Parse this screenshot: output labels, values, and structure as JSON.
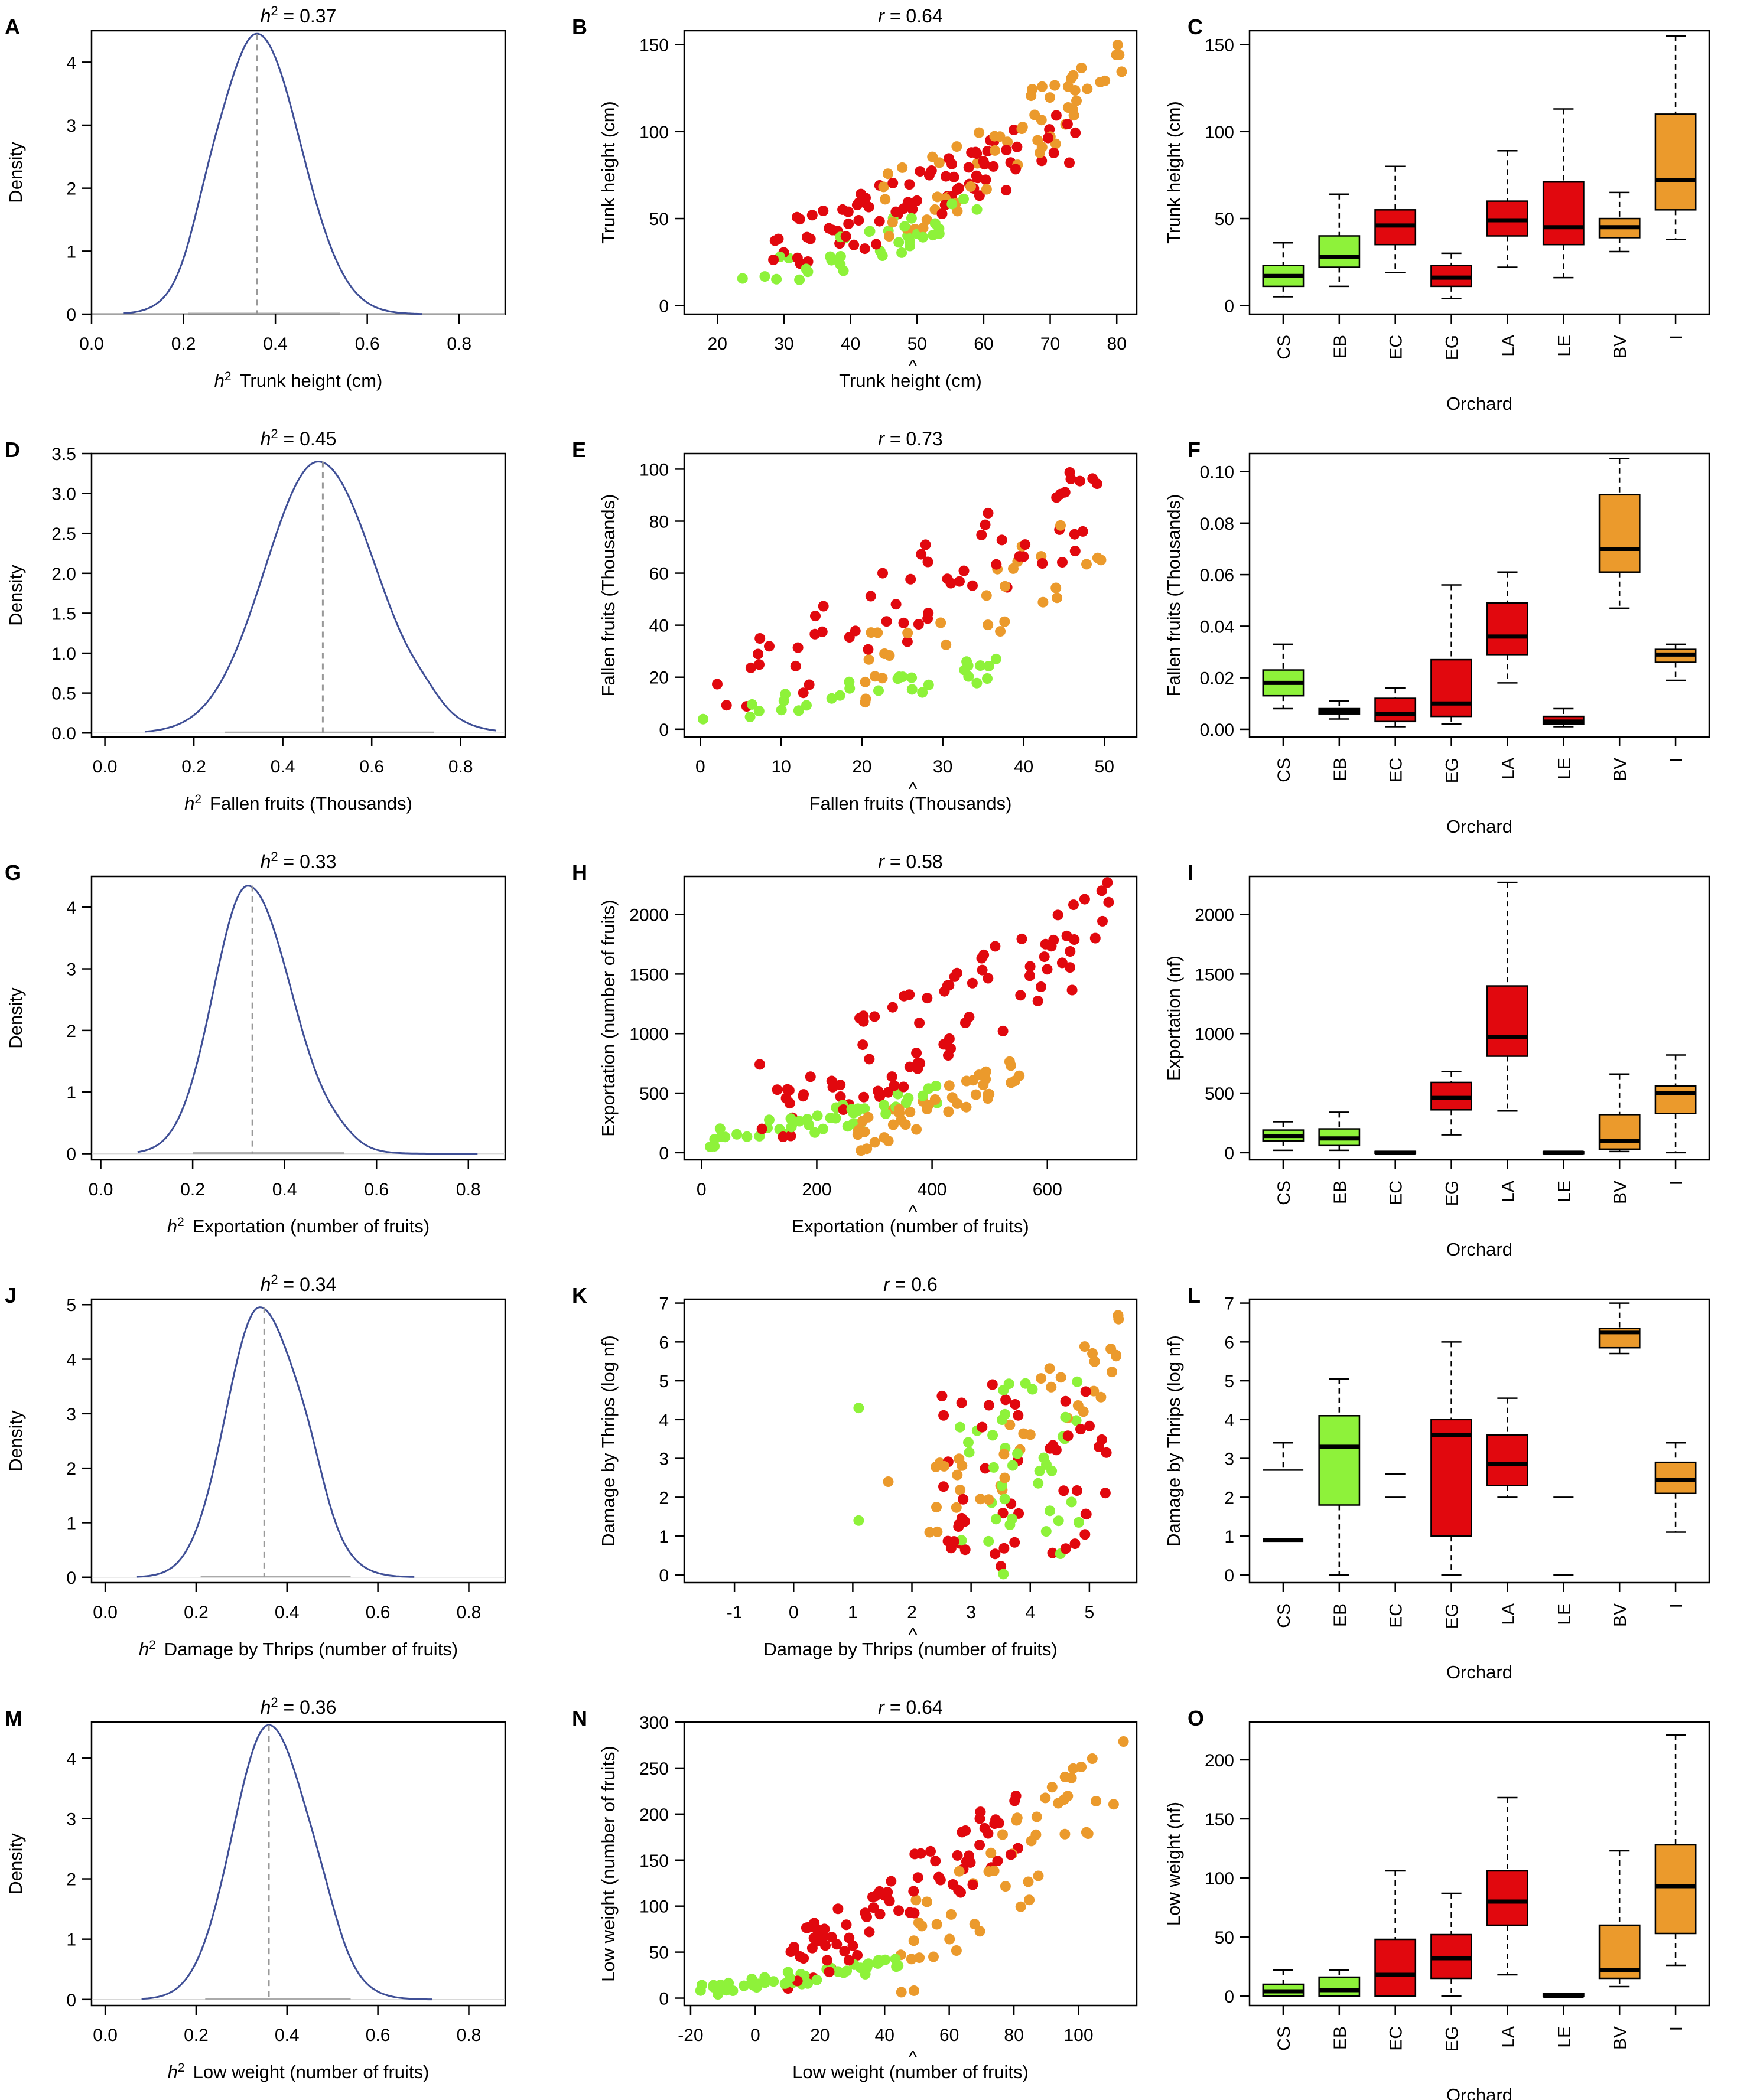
{
  "figure": {
    "background": "#ffffff"
  },
  "colors": {
    "green": "#8ef23a",
    "red": "#e1080e",
    "orange": "#eb9a2c",
    "density_line": "#3f4f96",
    "vline": "#999999",
    "interval": "#aaaaaa"
  },
  "orchards": {
    "labels": [
      "CS",
      "EB",
      "EC",
      "EG",
      "LA",
      "LE",
      "BV",
      "I"
    ],
    "groups": [
      "green",
      "green",
      "red",
      "red",
      "red",
      "red",
      "orange",
      "orange"
    ],
    "axis_title": "Orchard"
  },
  "chart_data": [
    {
      "panel": "A",
      "type": "line",
      "title_prefix": "h",
      "title_sup": "2",
      "title_value": " = 0.37",
      "xlabel_prefix": "h",
      "xlabel_sup": "2",
      "xlabel_rest": "Trunk height (cm)",
      "ylabel": "Density",
      "xlim": [
        0,
        0.9
      ],
      "ylim": [
        0,
        4.5
      ],
      "xticks": [
        0.0,
        0.2,
        0.4,
        0.6,
        0.8
      ],
      "yticks": [
        0,
        1,
        2,
        3,
        4
      ],
      "tick_decimals_x": 1,
      "tick_decimals_y": 0,
      "curve": {
        "mode": 0.36,
        "sigma_left": 0.085,
        "sigma_right": 0.095,
        "peak": 4.45,
        "range": [
          0.07,
          0.72
        ],
        "shoulder_x": 0.25,
        "shoulder_y": 2.9
      },
      "vline": 0.36,
      "interval": [
        0.21,
        0.54
      ]
    },
    {
      "panel": "B",
      "type": "scatter",
      "title_prefix": "r",
      "title_value": " = 0.64",
      "xlabel": "Trunk height (cm)",
      "hat": true,
      "ylabel": "Trunk height (cm)",
      "xlim": [
        15,
        83
      ],
      "ylim": [
        -5,
        158
      ],
      "xticks": [
        20,
        30,
        40,
        50,
        60,
        70,
        80
      ],
      "yticks": [
        0,
        50,
        100,
        150
      ],
      "clusters": [
        {
          "group": "green",
          "x_range": [
            23,
            60
          ],
          "y_range": [
            3,
            65
          ],
          "n": 38,
          "slope": 1.2
        },
        {
          "group": "red",
          "x_range": [
            28,
            74
          ],
          "y_range": [
            15,
            112
          ],
          "n": 85,
          "slope": 1.6
        },
        {
          "group": "orange",
          "x_range": [
            44,
            81
          ],
          "y_range": [
            30,
            155
          ],
          "n": 60,
          "slope": 2.0
        }
      ]
    },
    {
      "panel": "C",
      "type": "box",
      "ylabel": "Trunk height (cm)",
      "ylim": [
        -5,
        158
      ],
      "yticks": [
        0,
        50,
        100,
        150
      ],
      "boxes": [
        {
          "min": 5,
          "q1": 11,
          "med": 17,
          "q3": 23,
          "max": 36
        },
        {
          "min": 11,
          "q1": 22,
          "med": 28,
          "q3": 40,
          "max": 64
        },
        {
          "min": 19,
          "q1": 35,
          "med": 46,
          "q3": 55,
          "max": 80
        },
        {
          "min": 4,
          "q1": 11,
          "med": 16,
          "q3": 23,
          "max": 30
        },
        {
          "min": 22,
          "q1": 40,
          "med": 49,
          "q3": 60,
          "max": 89
        },
        {
          "min": 16,
          "q1": 35,
          "med": 45,
          "q3": 71,
          "max": 113
        },
        {
          "min": 31,
          "q1": 39,
          "med": 45,
          "q3": 50,
          "max": 65
        },
        {
          "min": 38,
          "q1": 55,
          "med": 72,
          "q3": 110,
          "max": 155
        }
      ]
    },
    {
      "panel": "D",
      "type": "line",
      "title_prefix": "h",
      "title_sup": "2",
      "title_value": " = 0.45",
      "xlabel_prefix": "h",
      "xlabel_sup": "2",
      "xlabel_rest": "Fallen fruits (Thousands)",
      "ylabel": "Density",
      "xlim": [
        -0.03,
        0.9
      ],
      "ylim": [
        -0.05,
        3.5
      ],
      "xticks": [
        0.0,
        0.2,
        0.4,
        0.6,
        0.8
      ],
      "yticks": [
        0.0,
        0.5,
        1.0,
        1.5,
        2.0,
        2.5,
        3.0,
        3.5
      ],
      "tick_decimals_x": 1,
      "tick_decimals_y": 1,
      "curve": {
        "mode": 0.48,
        "sigma_left": 0.12,
        "sigma_right": 0.13,
        "peak": 3.4,
        "range": [
          0.09,
          0.88
        ],
        "shoulder_x": 0.72,
        "shoulder_y": 0.75
      },
      "vline": 0.49,
      "interval": [
        0.27,
        0.74
      ]
    },
    {
      "panel": "E",
      "type": "scatter",
      "title_prefix": "r",
      "title_value": " = 0.73",
      "xlabel": "Fallen fruits (Thousands)",
      "hat": true,
      "ylabel": "Fallen fruits (Thousands)",
      "xlim": [
        -2,
        54
      ],
      "ylim": [
        -3,
        106
      ],
      "xticks": [
        0,
        10,
        20,
        30,
        40,
        50
      ],
      "yticks": [
        0,
        20,
        40,
        60,
        80,
        100
      ],
      "clusters": [
        {
          "group": "green",
          "x_range": [
            0,
            37
          ],
          "y_range": [
            1,
            27
          ],
          "n": 30,
          "slope": 0.5
        },
        {
          "group": "red",
          "x_range": [
            2,
            50
          ],
          "y_range": [
            0,
            104
          ],
          "n": 60,
          "slope": 1.1
        },
        {
          "group": "orange",
          "x_range": [
            20,
            53
          ],
          "y_range": [
            8,
            95
          ],
          "n": 30,
          "slope": 2.0
        }
      ]
    },
    {
      "panel": "F",
      "type": "box",
      "ylabel": "Fallen fruits (Thousands)",
      "ylim": [
        -0.003,
        0.107
      ],
      "yticks": [
        0.0,
        0.02,
        0.04,
        0.06,
        0.08,
        0.1
      ],
      "tick_decimals_y": 2,
      "boxes": [
        {
          "min": 0.008,
          "q1": 0.013,
          "med": 0.018,
          "q3": 0.023,
          "max": 0.033
        },
        {
          "min": 0.004,
          "q1": 0.006,
          "med": 0.007,
          "q3": 0.008,
          "max": 0.011
        },
        {
          "min": 0.001,
          "q1": 0.003,
          "med": 0.006,
          "q3": 0.012,
          "max": 0.016
        },
        {
          "min": 0.002,
          "q1": 0.005,
          "med": 0.01,
          "q3": 0.027,
          "max": 0.056
        },
        {
          "min": 0.018,
          "q1": 0.029,
          "med": 0.036,
          "q3": 0.049,
          "max": 0.061
        },
        {
          "min": 0.001,
          "q1": 0.002,
          "med": 0.003,
          "q3": 0.005,
          "max": 0.008
        },
        {
          "min": 0.047,
          "q1": 0.061,
          "med": 0.07,
          "q3": 0.091,
          "max": 0.105
        },
        {
          "min": 0.019,
          "q1": 0.026,
          "med": 0.029,
          "q3": 0.031,
          "max": 0.033
        }
      ]
    },
    {
      "panel": "G",
      "type": "line",
      "title_prefix": "h",
      "title_sup": "2",
      "title_value": " = 0.33",
      "xlabel_prefix": "h",
      "xlabel_sup": "2",
      "xlabel_rest": "Exportation (number of fruits)",
      "ylabel": "Density",
      "xlim": [
        -0.02,
        0.88
      ],
      "ylim": [
        -0.1,
        4.5
      ],
      "xticks": [
        0.0,
        0.2,
        0.4,
        0.6,
        0.8
      ],
      "yticks": [
        0,
        1,
        2,
        3,
        4
      ],
      "tick_decimals_x": 1,
      "tick_decimals_y": 0,
      "curve": {
        "mode": 0.32,
        "sigma_left": 0.075,
        "sigma_right": 0.095,
        "peak": 4.35,
        "range": [
          0.08,
          0.82
        ],
        "shoulder_x": 0.52,
        "shoulder_y": 0.8
      },
      "vline": 0.33,
      "interval": [
        0.2,
        0.53
      ]
    },
    {
      "panel": "H",
      "type": "scatter",
      "title_prefix": "r",
      "title_value": " = 0.58",
      "xlabel": "Exportation (number of fruits)",
      "hat": true,
      "ylabel": "Exportation (number of fruits)",
      "xlim": [
        -30,
        755
      ],
      "ylim": [
        -60,
        2320
      ],
      "xticks": [
        0,
        200,
        400,
        600
      ],
      "yticks": [
        0,
        500,
        1000,
        1500,
        2000
      ],
      "clusters": [
        {
          "group": "green",
          "x_range": [
            0,
            420
          ],
          "y_range": [
            0,
            560
          ],
          "n": 45,
          "slope": 0.6
        },
        {
          "group": "red",
          "x_range": [
            100,
            730
          ],
          "y_range": [
            0,
            2270
          ],
          "n": 85,
          "slope": 2.2
        },
        {
          "group": "orange",
          "x_range": [
            270,
            560
          ],
          "y_range": [
            0,
            840
          ],
          "n": 45,
          "slope": 1.3
        }
      ]
    },
    {
      "panel": "I",
      "type": "box",
      "ylabel": "Exportation (nf)",
      "ylim": [
        -60,
        2320
      ],
      "yticks": [
        0,
        500,
        1000,
        1500,
        2000
      ],
      "boxes": [
        {
          "min": 20,
          "q1": 100,
          "med": 140,
          "q3": 190,
          "max": 260
        },
        {
          "min": 20,
          "q1": 60,
          "med": 120,
          "q3": 200,
          "max": 340
        },
        {
          "min": 0,
          "q1": 0,
          "med": 0,
          "q3": 10,
          "max": 10
        },
        {
          "min": 150,
          "q1": 360,
          "med": 460,
          "q3": 590,
          "max": 680
        },
        {
          "min": 350,
          "q1": 810,
          "med": 970,
          "q3": 1400,
          "max": 2270
        },
        {
          "min": 0,
          "q1": 0,
          "med": 0,
          "q3": 8,
          "max": 8
        },
        {
          "min": 10,
          "q1": 30,
          "med": 100,
          "q3": 320,
          "max": 660
        },
        {
          "min": 0,
          "q1": 330,
          "med": 500,
          "q3": 560,
          "max": 820
        }
      ]
    },
    {
      "panel": "J",
      "type": "line",
      "title_prefix": "h",
      "title_sup": "2",
      "title_value": " = 0.34",
      "xlabel_prefix": "h",
      "xlabel_sup": "2",
      "xlabel_rest": "Damage by Thrips (number of fruits)",
      "ylabel": "Density",
      "xlim": [
        -0.03,
        0.88
      ],
      "ylim": [
        -0.1,
        5.1
      ],
      "xticks": [
        0.0,
        0.2,
        0.4,
        0.6,
        0.8
      ],
      "yticks": [
        0,
        1,
        2,
        3,
        4,
        5
      ],
      "tick_decimals_x": 1,
      "tick_decimals_y": 0,
      "curve": {
        "mode": 0.34,
        "sigma_left": 0.075,
        "sigma_right": 0.09,
        "peak": 4.95,
        "range": [
          0.07,
          0.68
        ],
        "shoulder_x": 0.45,
        "shoulder_y": 3.5
      },
      "vline": 0.35,
      "interval": [
        0.21,
        0.54
      ]
    },
    {
      "panel": "K",
      "type": "scatter",
      "title_prefix": "r",
      "title_value": " = 0.6",
      "xlabel": "Damage by Thrips (number of fruits)",
      "hat": true,
      "ylabel": "Damage by Thrips (log nf)",
      "xlim": [
        -1.85,
        5.8
      ],
      "ylim": [
        -0.2,
        7.1
      ],
      "xticks": [
        -1,
        0,
        1,
        2,
        3,
        4,
        5
      ],
      "yticks": [
        0,
        1,
        2,
        3,
        4,
        5,
        6,
        7
      ],
      "clusters": [
        {
          "group": "green",
          "x_range": [
            2.8,
            5.0
          ],
          "y_range": [
            0,
            5
          ],
          "n": 40,
          "slope": 0
        },
        {
          "group": "red",
          "x_range": [
            2.5,
            5.3
          ],
          "y_range": [
            0,
            5
          ],
          "n": 50,
          "slope": 0
        },
        {
          "group": "orange",
          "x_range": [
            2.4,
            5.6
          ],
          "y_range": [
            0.8,
            7
          ],
          "n": 38,
          "slope": 0.5
        }
      ],
      "extra_points": [
        {
          "group": "green",
          "x": 1.1,
          "y": 4.3
        },
        {
          "group": "green",
          "x": 1.1,
          "y": 1.4
        },
        {
          "group": "orange",
          "x": 1.6,
          "y": 2.4
        },
        {
          "group": "orange",
          "x": 2.3,
          "y": 1.1
        }
      ]
    },
    {
      "panel": "L",
      "type": "box",
      "ylabel": "Damage by Thrips (log nf)",
      "ylim": [
        -0.2,
        7.1
      ],
      "yticks": [
        0,
        1,
        2,
        3,
        4,
        5,
        6,
        7
      ],
      "boxes": [
        {
          "min": 0.9,
          "q1": 0.9,
          "med": 0.9,
          "q3": 0.9,
          "max": 2.7,
          "upper": 3.4,
          "degenerate": true
        },
        {
          "min": 0.0,
          "q1": 1.8,
          "med": 3.3,
          "q3": 4.1,
          "max": 5.05
        },
        {
          "min": 2.0,
          "q1": 2.0,
          "med": 2.0,
          "q3": 2.6,
          "max": 2.6,
          "lines_only": true
        },
        {
          "min": 0.0,
          "q1": 1.0,
          "med": 3.6,
          "q3": 4.0,
          "max": 6.0
        },
        {
          "min": 2.0,
          "q1": 2.3,
          "med": 2.85,
          "q3": 3.6,
          "max": 4.55
        },
        {
          "min": 0.0,
          "q1": 0.0,
          "med": 0.0,
          "q3": 2.0,
          "max": 2.0,
          "lines_only": true
        },
        {
          "min": 5.7,
          "q1": 5.85,
          "med": 6.25,
          "q3": 6.35,
          "max": 7.0
        },
        {
          "min": 1.1,
          "q1": 2.1,
          "med": 2.45,
          "q3": 2.9,
          "max": 3.4
        }
      ]
    },
    {
      "panel": "M",
      "type": "line",
      "title_prefix": "h",
      "title_sup": "2",
      "title_value": " = 0.36",
      "xlabel_prefix": "h",
      "xlabel_sup": "2",
      "xlabel_rest": "Low weight (number of fruits)",
      "ylabel": "Density",
      "xlim": [
        -0.03,
        0.88
      ],
      "ylim": [
        -0.1,
        4.6
      ],
      "xticks": [
        0.0,
        0.2,
        0.4,
        0.6,
        0.8
      ],
      "yticks": [
        0,
        1,
        2,
        3,
        4
      ],
      "tick_decimals_x": 1,
      "tick_decimals_y": 0,
      "curve": {
        "mode": 0.36,
        "sigma_left": 0.08,
        "sigma_right": 0.09,
        "peak": 4.55,
        "range": [
          0.08,
          0.72
        ],
        "shoulder_x": 0.48,
        "shoulder_y": 2.2
      },
      "vline": 0.36,
      "interval": [
        0.22,
        0.54
      ]
    },
    {
      "panel": "N",
      "type": "scatter",
      "title_prefix": "r",
      "title_value": " = 0.64",
      "xlabel": "Low weight (number of fruits)",
      "hat": true,
      "ylabel": "Low weight (number of fruits)",
      "xlim": [
        -22,
        118
      ],
      "ylim": [
        -8,
        300
      ],
      "xticks": [
        -20,
        0,
        20,
        40,
        60,
        80,
        100
      ],
      "yticks": [
        0,
        50,
        100,
        150,
        200,
        250,
        300
      ],
      "clusters": [
        {
          "group": "green",
          "x_range": [
            -18,
            45
          ],
          "y_range": [
            0,
            45
          ],
          "n": 50,
          "slope": 0.1
        },
        {
          "group": "red",
          "x_range": [
            10,
            82
          ],
          "y_range": [
            0,
            225
          ],
          "n": 80,
          "slope": 1.5
        },
        {
          "group": "orange",
          "x_range": [
            45,
            115
          ],
          "y_range": [
            0,
            290
          ],
          "n": 50,
          "slope": 1.6
        }
      ]
    },
    {
      "panel": "O",
      "type": "box",
      "ylabel": "Low weight (nf)",
      "ylim": [
        -8,
        232
      ],
      "yticks": [
        0,
        50,
        100,
        150,
        200
      ],
      "boxes": [
        {
          "min": 0,
          "q1": 0,
          "med": 4,
          "q3": 10,
          "max": 22
        },
        {
          "min": 0,
          "q1": 0,
          "med": 5,
          "q3": 16,
          "max": 22
        },
        {
          "min": 0,
          "q1": 0,
          "med": 18,
          "q3": 48,
          "max": 106
        },
        {
          "min": 0,
          "q1": 15,
          "med": 32,
          "q3": 52,
          "max": 87
        },
        {
          "min": 18,
          "q1": 60,
          "med": 80,
          "q3": 106,
          "max": 168
        },
        {
          "min": 0,
          "q1": 0,
          "med": 0,
          "q3": 2,
          "max": 2
        },
        {
          "min": 8,
          "q1": 15,
          "med": 22,
          "q3": 60,
          "max": 123
        },
        {
          "min": 26,
          "q1": 53,
          "med": 93,
          "q3": 128,
          "max": 221
        }
      ]
    }
  ]
}
